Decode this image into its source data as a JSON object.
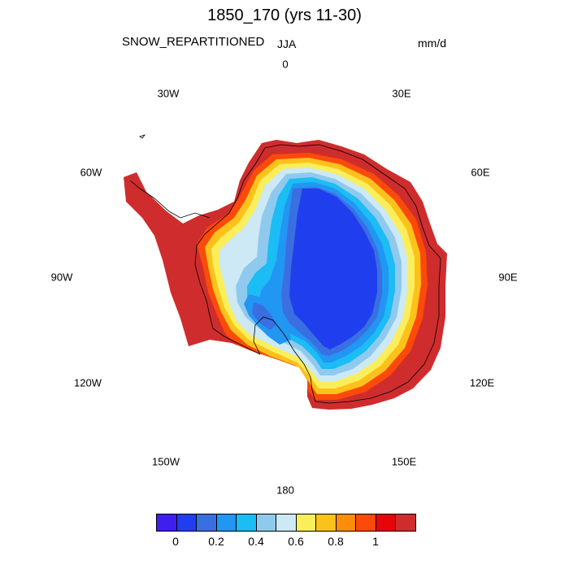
{
  "header": {
    "title": "1850_170 (yrs 11-30)",
    "variable": "SNOW_REPARTITIONED",
    "season": "JJA",
    "units": "mm/d"
  },
  "longitude_labels": [
    "0",
    "30E",
    "60E",
    "90E",
    "120E",
    "150E",
    "180",
    "150W",
    "120W",
    "90W",
    "60W",
    "30W"
  ],
  "colorbar": {
    "colors": [
      "#3f1fef",
      "#1f3fef",
      "#3a6fe2",
      "#2196f3",
      "#1cbcf5",
      "#8fcaee",
      "#cce9f5",
      "#fbee5b",
      "#fcc21c",
      "#fc8c0a",
      "#fb4a0a",
      "#e4060a",
      "#cf2d2d"
    ],
    "tick_labels": [
      "0",
      "0.2",
      "0.4",
      "0.6",
      "0.8",
      "1"
    ]
  },
  "chart_data": {
    "type": "heatmap",
    "projection": "south-polar-stereographic",
    "title": "1850_170 (yrs 11-30)",
    "variable": "SNOW_REPARTITIONED",
    "season": "JJA",
    "units": "mm/d",
    "levels": [
      0,
      0.1,
      0.2,
      0.3,
      0.4,
      0.5,
      0.6,
      0.7,
      0.8,
      0.9,
      1.0,
      1.1
    ],
    "pattern": {
      "east_antarctic_plateau_interior": 0.05,
      "plateau_mid_slopes": 0.25,
      "west_antarctica_interior": 0.55,
      "coastal_margin": 0.85,
      "coastal_fringe_and_peninsula": 1.2
    }
  }
}
